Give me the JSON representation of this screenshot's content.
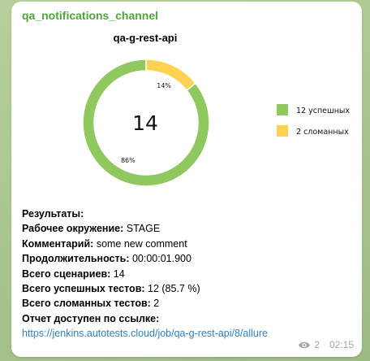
{
  "channel_name": "qa_notifications_channel",
  "chart_data": {
    "type": "pie",
    "title": "qa-g-rest-api",
    "center_label": "14",
    "slices": [
      {
        "label": "12 успешных",
        "value": 12,
        "percent_label": "86%",
        "color": "#8fc85f"
      },
      {
        "label": "2 сломанных",
        "value": 2,
        "percent_label": "14%",
        "color": "#fdd152"
      }
    ],
    "legend_position": "right"
  },
  "message": {
    "results_label": "Результаты:",
    "env_label": "Рабочее окружение:",
    "env_value": " STAGE",
    "comment_label": "Комментарий:",
    "comment_value": " some new comment",
    "duration_label": "Продолжительность:",
    "duration_value": " 00:00:01.900",
    "total_label": "Всего сценариев:",
    "total_value": " 14",
    "passed_label": "Всего успешных тестов:",
    "passed_value": " 12 (85.7 %)",
    "failed_label": "Всего сломанных тестов:",
    "failed_value": " 2",
    "report_label": "Отчет доступен по ссылке:",
    "report_link": "https://jenkins.autotests.cloud/job/qa-g-rest-api/8/allure"
  },
  "meta": {
    "views": "2",
    "time": "02:15",
    "views_icon": "eye-icon"
  }
}
